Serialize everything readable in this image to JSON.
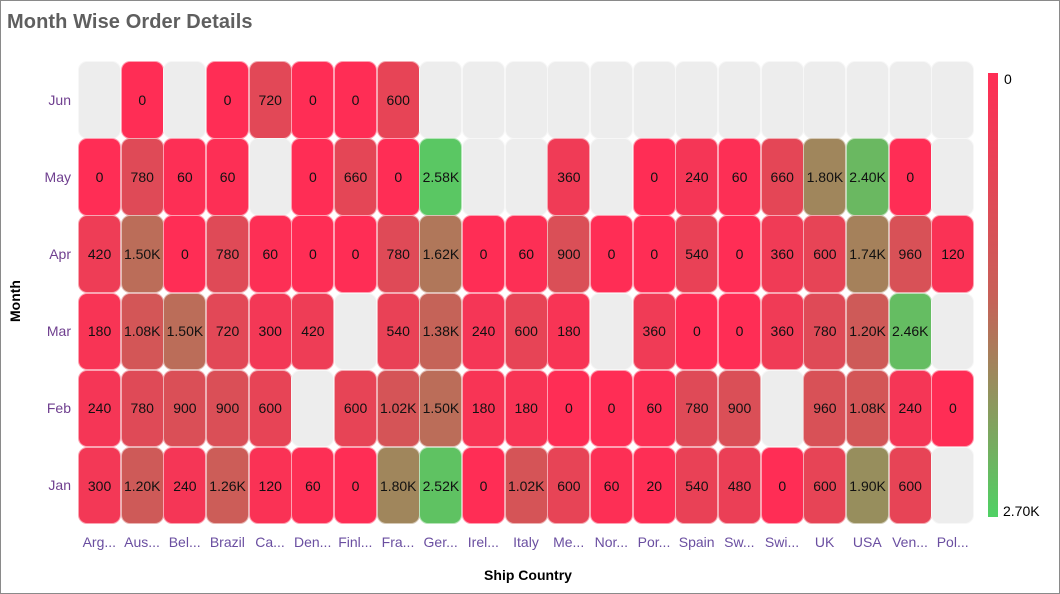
{
  "header": {
    "title": "Month Wise Order Details"
  },
  "axes": {
    "x_title": "Ship Country",
    "y_title": "Month"
  },
  "legend": {
    "min_label": "0",
    "max_label": "2.70K",
    "min_color": "#ff2d55",
    "max_color": "#4fd164"
  },
  "chart_data": {
    "type": "heatmap",
    "title": "Month Wise Order Details",
    "xlabel": "Ship Country",
    "ylabel": "Month",
    "x_categories": [
      "Arg...",
      "Aus...",
      "Bel...",
      "Brazil",
      "Ca...",
      "Den...",
      "Finl...",
      "Fra...",
      "Ger...",
      "Irel...",
      "Italy",
      "Me...",
      "Nor...",
      "Por...",
      "Spain",
      "Sw...",
      "Swi...",
      "UK",
      "USA",
      "Ven...",
      "Pol..."
    ],
    "y_categories": [
      "Jun",
      "May",
      "Apr",
      "Mar",
      "Feb",
      "Jan"
    ],
    "color_range": [
      0,
      2700
    ],
    "color_scale": [
      "#ff2d55",
      "#4fd164"
    ],
    "values": [
      [
        null,
        0,
        null,
        0,
        720,
        0,
        0,
        600,
        null,
        null,
        null,
        null,
        null,
        null,
        null,
        null,
        null,
        null,
        null,
        null,
        null
      ],
      [
        0,
        780,
        60,
        60,
        null,
        0,
        660,
        0,
        2580,
        null,
        null,
        360,
        null,
        0,
        240,
        60,
        660,
        1800,
        2400,
        0,
        null
      ],
      [
        420,
        1500,
        0,
        780,
        60,
        0,
        0,
        780,
        1620,
        0,
        60,
        900,
        0,
        0,
        540,
        0,
        360,
        600,
        1740,
        960,
        120
      ],
      [
        180,
        1080,
        1500,
        720,
        300,
        420,
        null,
        540,
        1380,
        240,
        600,
        180,
        null,
        360,
        0,
        0,
        360,
        780,
        1200,
        2460,
        null
      ],
      [
        240,
        780,
        900,
        900,
        600,
        null,
        600,
        1020,
        1500,
        180,
        180,
        0,
        0,
        60,
        780,
        900,
        null,
        960,
        1080,
        240,
        0
      ],
      [
        300,
        1200,
        240,
        1260,
        120,
        60,
        0,
        1800,
        2520,
        0,
        1020,
        600,
        60,
        20,
        540,
        480,
        0,
        600,
        1900,
        600,
        null
      ]
    ],
    "labels": [
      [
        "",
        "0",
        "",
        "0",
        "720",
        "0",
        "0",
        "600",
        "",
        "",
        "",
        "",
        "",
        "",
        "",
        "",
        "",
        "",
        "",
        "",
        ""
      ],
      [
        "0",
        "780",
        "60",
        "60",
        "",
        "0",
        "660",
        "0",
        "2.58K",
        "",
        "",
        "360",
        "",
        "0",
        "240",
        "60",
        "660",
        "1.80K",
        "2.40K",
        "0",
        ""
      ],
      [
        "420",
        "1.50K",
        "0",
        "780",
        "60",
        "0",
        "0",
        "780",
        "1.62K",
        "0",
        "60",
        "900",
        "0",
        "0",
        "540",
        "0",
        "360",
        "600",
        "1.74K",
        "960",
        "120"
      ],
      [
        "180",
        "1.08K",
        "1.50K",
        "720",
        "300",
        "420",
        "",
        "540",
        "1.38K",
        "240",
        "600",
        "180",
        "",
        "360",
        "0",
        "0",
        "360",
        "780",
        "1.20K",
        "2.46K",
        ""
      ],
      [
        "240",
        "780",
        "900",
        "900",
        "600",
        "",
        "600",
        "1.02K",
        "1.50K",
        "180",
        "180",
        "0",
        "0",
        "60",
        "780",
        "900",
        "",
        "960",
        "1.08K",
        "240",
        "0"
      ],
      [
        "300",
        "1.20K",
        "240",
        "1.26K",
        "120",
        "60",
        "0",
        "1.80K",
        "2.52K",
        "0",
        "1.02K",
        "600",
        "60",
        "20",
        "540",
        "480",
        "0",
        "600",
        "1.90K",
        "600",
        ""
      ]
    ],
    "legend_position": "right",
    "empty_cell_color": "#ededed"
  }
}
